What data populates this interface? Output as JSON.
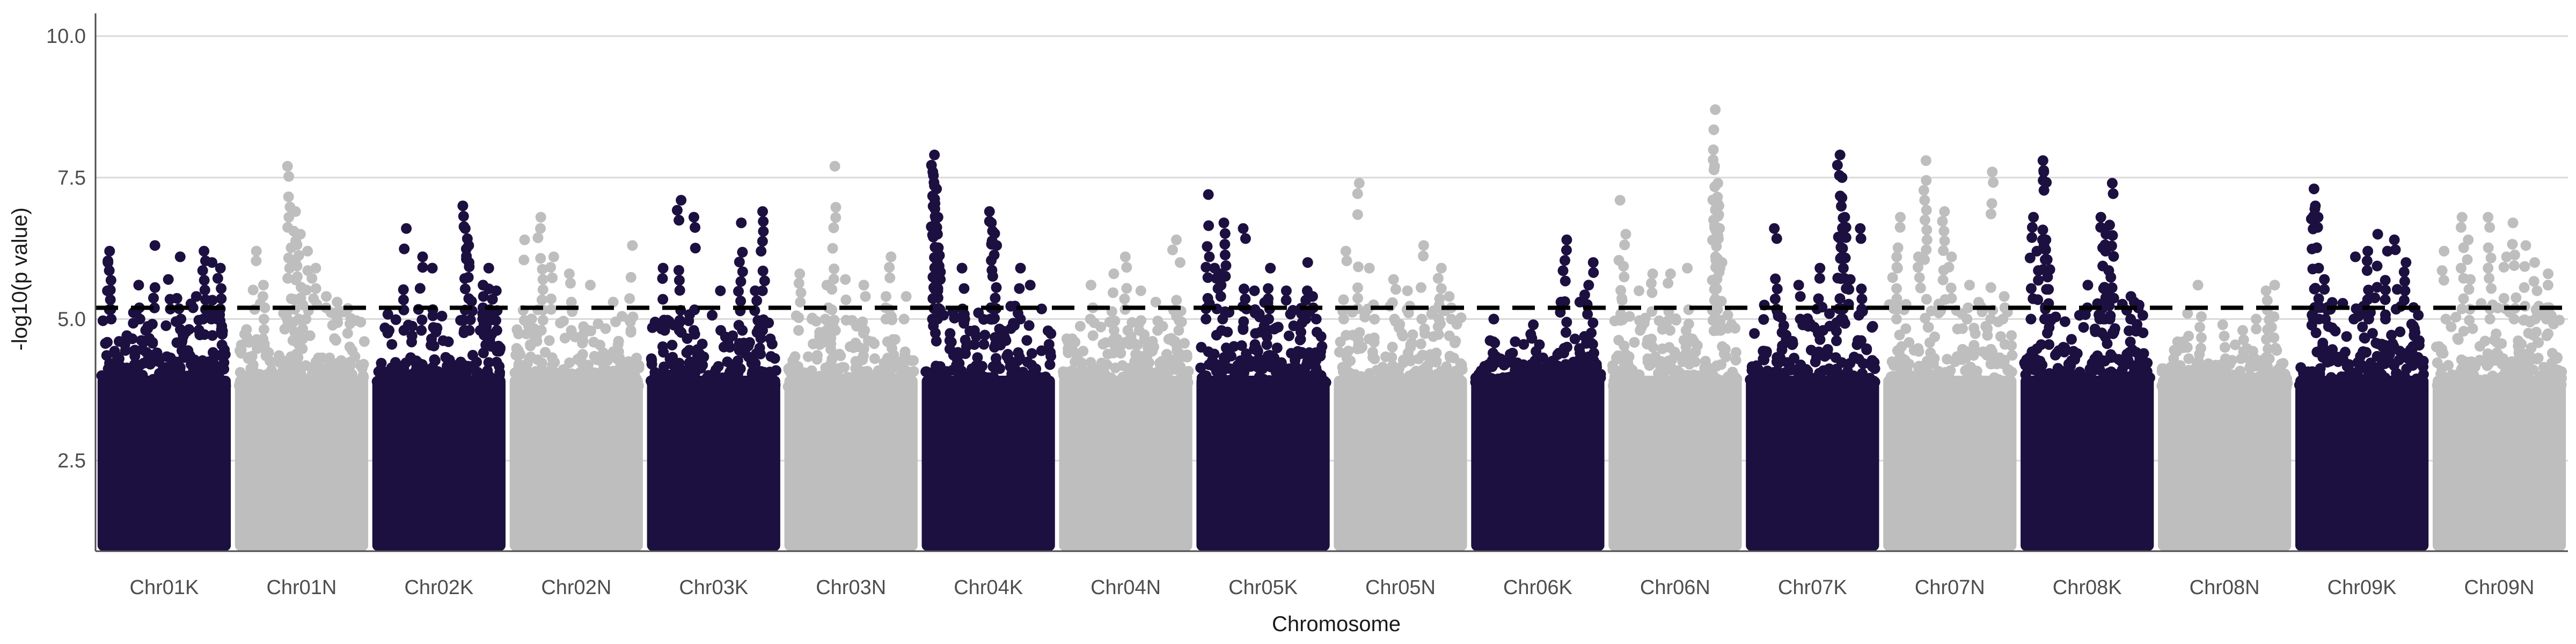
{
  "chart_data": {
    "type": "scatter",
    "title": "",
    "xlabel": "Chromosome",
    "ylabel": "-log10(p value)",
    "ylim": [
      0.9,
      10.4
    ],
    "yticks": [
      "2.5",
      "5.0",
      "7.5",
      "10.0"
    ],
    "ytick_values": [
      2.5,
      5.0,
      7.5,
      10.0
    ],
    "threshold": 5.2,
    "grid": "horizontal major",
    "legend": "none",
    "colors": {
      "K": "#1c1040",
      "N": "#bebebe",
      "threshold": "#000000"
    },
    "categories": [
      "Chr01K",
      "Chr01N",
      "Chr02K",
      "Chr02N",
      "Chr03K",
      "Chr03N",
      "Chr04K",
      "Chr04N",
      "Chr05K",
      "Chr05N",
      "Chr06K",
      "Chr06N",
      "Chr07K",
      "Chr07N",
      "Chr08K",
      "Chr08N",
      "Chr09K",
      "Chr09N"
    ],
    "series": [
      {
        "category": "Chr01K",
        "color": "#1c1040",
        "base_max": 5.0,
        "top": [
          [
            0.05,
            6.2
          ],
          [
            0.05,
            6.0
          ],
          [
            0.3,
            5.6
          ],
          [
            0.42,
            6.3
          ],
          [
            0.55,
            5.7
          ],
          [
            0.62,
            6.1
          ],
          [
            0.75,
            5.4
          ],
          [
            0.82,
            6.2
          ],
          [
            0.88,
            6.0
          ],
          [
            0.95,
            5.9
          ]
        ]
      },
      {
        "category": "Chr01N",
        "color": "#bebebe",
        "base_max": 5.0,
        "top": [
          [
            0.12,
            6.2
          ],
          [
            0.2,
            5.6
          ],
          [
            0.4,
            7.7
          ],
          [
            0.45,
            6.9
          ],
          [
            0.48,
            6.5
          ],
          [
            0.55,
            6.2
          ],
          [
            0.6,
            5.9
          ],
          [
            0.7,
            5.4
          ],
          [
            0.8,
            5.3
          ]
        ]
      },
      {
        "category": "Chr02K",
        "color": "#1c1040",
        "base_max": 4.8,
        "top": [
          [
            0.22,
            6.6
          ],
          [
            0.35,
            6.1
          ],
          [
            0.45,
            5.9
          ],
          [
            0.7,
            7.0
          ],
          [
            0.72,
            6.6
          ],
          [
            0.74,
            6.3
          ],
          [
            0.76,
            6.0
          ],
          [
            0.85,
            5.6
          ],
          [
            0.92,
            5.9
          ],
          [
            0.96,
            5.5
          ]
        ]
      },
      {
        "category": "Chr02N",
        "color": "#bebebe",
        "base_max": 4.8,
        "top": [
          [
            0.08,
            6.4
          ],
          [
            0.2,
            6.8
          ],
          [
            0.22,
            6.6
          ],
          [
            0.3,
            6.1
          ],
          [
            0.45,
            5.8
          ],
          [
            0.6,
            5.6
          ],
          [
            0.8,
            5.3
          ],
          [
            0.95,
            6.3
          ]
        ]
      },
      {
        "category": "Chr03K",
        "color": "#1c1040",
        "base_max": 4.8,
        "top": [
          [
            0.1,
            5.9
          ],
          [
            0.22,
            7.1
          ],
          [
            0.35,
            6.8
          ],
          [
            0.55,
            5.5
          ],
          [
            0.72,
            6.7
          ],
          [
            0.85,
            5.5
          ],
          [
            0.9,
            6.9
          ]
        ]
      },
      {
        "category": "Chr03N",
        "color": "#bebebe",
        "base_max": 4.8,
        "top": [
          [
            0.08,
            5.8
          ],
          [
            0.3,
            5.6
          ],
          [
            0.36,
            7.7
          ],
          [
            0.45,
            5.7
          ],
          [
            0.62,
            5.6
          ],
          [
            0.78,
            5.4
          ],
          [
            0.82,
            6.1
          ],
          [
            0.95,
            5.4
          ]
        ]
      },
      {
        "category": "Chr04K",
        "color": "#1c1040",
        "base_max": 5.0,
        "top": [
          [
            0.05,
            7.9
          ],
          [
            0.06,
            7.6
          ],
          [
            0.07,
            7.3
          ],
          [
            0.08,
            6.8
          ],
          [
            0.09,
            6.5
          ],
          [
            0.1,
            6.0
          ],
          [
            0.12,
            5.7
          ],
          [
            0.3,
            5.9
          ],
          [
            0.52,
            6.9
          ],
          [
            0.54,
            6.7
          ],
          [
            0.56,
            6.3
          ],
          [
            0.75,
            5.9
          ],
          [
            0.85,
            5.6
          ]
        ]
      },
      {
        "category": "Chr04N",
        "color": "#bebebe",
        "base_max": 4.8,
        "top": [
          [
            0.22,
            5.6
          ],
          [
            0.4,
            5.8
          ],
          [
            0.5,
            6.1
          ],
          [
            0.62,
            5.5
          ],
          [
            0.75,
            5.3
          ],
          [
            0.9,
            6.4
          ],
          [
            0.94,
            6.0
          ]
        ]
      },
      {
        "category": "Chr05K",
        "color": "#1c1040",
        "base_max": 5.0,
        "top": [
          [
            0.05,
            7.2
          ],
          [
            0.12,
            5.9
          ],
          [
            0.15,
            5.8
          ],
          [
            0.18,
            6.7
          ],
          [
            0.35,
            6.6
          ],
          [
            0.42,
            5.5
          ],
          [
            0.55,
            5.9
          ],
          [
            0.7,
            5.5
          ],
          [
            0.85,
            6.0
          ],
          [
            0.92,
            5.4
          ]
        ]
      },
      {
        "category": "Chr05N",
        "color": "#bebebe",
        "base_max": 5.0,
        "top": [
          [
            0.05,
            6.2
          ],
          [
            0.15,
            7.4
          ],
          [
            0.25,
            5.9
          ],
          [
            0.45,
            5.7
          ],
          [
            0.55,
            5.5
          ],
          [
            0.68,
            6.3
          ],
          [
            0.82,
            5.9
          ],
          [
            0.9,
            5.4
          ]
        ]
      },
      {
        "category": "Chr06K",
        "color": "#1c1040",
        "base_max": 4.4,
        "top": [
          [
            0.15,
            5.0
          ],
          [
            0.3,
            4.6
          ],
          [
            0.45,
            4.9
          ],
          [
            0.68,
            5.3
          ],
          [
            0.72,
            6.4
          ],
          [
            0.85,
            5.3
          ],
          [
            0.9,
            5.6
          ],
          [
            0.95,
            6.0
          ]
        ]
      },
      {
        "category": "Chr06N",
        "color": "#bebebe",
        "base_max": 4.8,
        "top": [
          [
            0.05,
            7.1
          ],
          [
            0.08,
            6.5
          ],
          [
            0.2,
            5.5
          ],
          [
            0.3,
            5.8
          ],
          [
            0.45,
            5.8
          ],
          [
            0.6,
            5.9
          ],
          [
            0.82,
            8.7
          ],
          [
            0.83,
            7.7
          ],
          [
            0.84,
            7.4
          ],
          [
            0.85,
            7.0
          ],
          [
            0.86,
            6.6
          ],
          [
            0.87,
            6.0
          ]
        ]
      },
      {
        "category": "Chr07K",
        "color": "#1c1040",
        "base_max": 5.0,
        "top": [
          [
            0.2,
            6.6
          ],
          [
            0.4,
            5.6
          ],
          [
            0.55,
            5.9
          ],
          [
            0.72,
            7.9
          ],
          [
            0.74,
            7.5
          ],
          [
            0.76,
            6.8
          ],
          [
            0.8,
            5.7
          ],
          [
            0.9,
            6.6
          ]
        ]
      },
      {
        "category": "Chr07N",
        "color": "#bebebe",
        "base_max": 5.0,
        "top": [
          [
            0.05,
            6.1
          ],
          [
            0.08,
            6.8
          ],
          [
            0.25,
            6.1
          ],
          [
            0.3,
            7.8
          ],
          [
            0.45,
            6.9
          ],
          [
            0.5,
            6.1
          ],
          [
            0.65,
            5.6
          ],
          [
            0.85,
            7.6
          ],
          [
            0.95,
            5.4
          ]
        ]
      },
      {
        "category": "Chr08K",
        "color": "#1c1040",
        "base_max": 5.0,
        "top": [
          [
            0.05,
            6.8
          ],
          [
            0.1,
            6.2
          ],
          [
            0.15,
            7.8
          ],
          [
            0.16,
            7.6
          ],
          [
            0.18,
            6.4
          ],
          [
            0.5,
            5.6
          ],
          [
            0.62,
            6.8
          ],
          [
            0.64,
            6.5
          ],
          [
            0.66,
            6.2
          ],
          [
            0.7,
            7.4
          ],
          [
            0.85,
            5.4
          ]
        ]
      },
      {
        "category": "Chr08N",
        "color": "#bebebe",
        "base_max": 4.3,
        "top": [
          [
            0.1,
            4.6
          ],
          [
            0.2,
            5.1
          ],
          [
            0.3,
            5.6
          ],
          [
            0.5,
            4.9
          ],
          [
            0.65,
            4.8
          ],
          [
            0.75,
            5.0
          ],
          [
            0.85,
            5.5
          ],
          [
            0.9,
            5.6
          ]
        ]
      },
      {
        "category": "Chr09K",
        "color": "#1c1040",
        "base_max": 5.0,
        "top": [
          [
            0.1,
            7.3
          ],
          [
            0.12,
            7.0
          ],
          [
            0.14,
            6.8
          ],
          [
            0.2,
            5.7
          ],
          [
            0.45,
            6.1
          ],
          [
            0.55,
            6.2
          ],
          [
            0.62,
            6.5
          ],
          [
            0.7,
            6.2
          ],
          [
            0.78,
            6.4
          ],
          [
            0.85,
            6.0
          ]
        ]
      },
      {
        "category": "Chr09N",
        "color": "#bebebe",
        "base_max": 5.0,
        "top": [
          [
            0.05,
            6.2
          ],
          [
            0.2,
            6.8
          ],
          [
            0.25,
            6.4
          ],
          [
            0.42,
            6.8
          ],
          [
            0.55,
            6.1
          ],
          [
            0.62,
            6.7
          ],
          [
            0.7,
            6.3
          ],
          [
            0.8,
            6.0
          ],
          [
            0.9,
            5.8
          ]
        ]
      }
    ]
  }
}
